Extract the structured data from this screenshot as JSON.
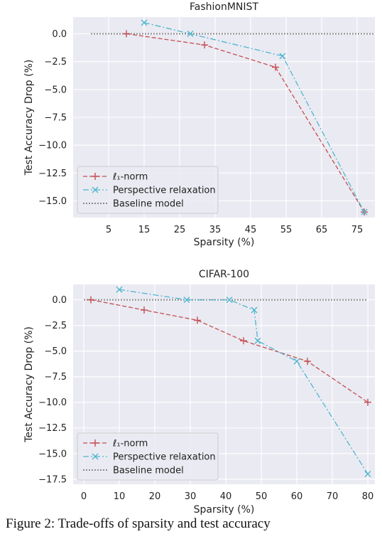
{
  "colors": {
    "background": "#eaeaf2",
    "grid": "#ffffff",
    "l1": "#c44e52",
    "perspective": "#4fb6cf",
    "baseline": "#8c8c8c"
  },
  "chart_data": [
    {
      "type": "line",
      "title": "FashionMNIST",
      "xlabel": "Sparsity (%)",
      "ylabel": "Test Accuracy Drop (%)",
      "xlim": [
        -5,
        80
      ],
      "ylim": [
        -16.5,
        1.5
      ],
      "xticks": [
        5,
        15,
        25,
        35,
        45,
        55,
        65,
        75
      ],
      "yticks": [
        0.0,
        -2.5,
        -5.0,
        -7.5,
        -10.0,
        -12.5,
        -15.0
      ],
      "ytick_labels": [
        "0.0",
        "−2.5",
        "−5.0",
        "−7.5",
        "−10.0",
        "−12.5",
        "−15.0"
      ],
      "grid": true,
      "legend_position": "lower-left",
      "series": [
        {
          "name": "ℓ₁-norm",
          "color_key": "l1",
          "marker": "plus",
          "style": "dashed",
          "x": [
            10,
            32,
            52,
            77
          ],
          "y": [
            0.0,
            -1.0,
            -3.0,
            -16.0
          ]
        },
        {
          "name": "Perspective relaxation",
          "color_key": "perspective",
          "marker": "x",
          "style": "dashdot",
          "x": [
            15,
            28,
            54,
            77
          ],
          "y": [
            1.0,
            0.0,
            -2.0,
            -16.0
          ]
        },
        {
          "name": "Baseline model",
          "color_key": "baseline",
          "marker": "none",
          "style": "dotted",
          "x": [
            0,
            80
          ],
          "y": [
            0.0,
            0.0
          ]
        }
      ]
    },
    {
      "type": "line",
      "title": "CIFAR-100",
      "xlabel": "Sparsity (%)",
      "ylabel": "Test Accuracy Drop (%)",
      "xlim": [
        -3,
        82
      ],
      "ylim": [
        -18.0,
        1.5
      ],
      "xticks": [
        0,
        10,
        20,
        30,
        40,
        50,
        60,
        70,
        80
      ],
      "yticks": [
        0.0,
        -2.5,
        -5.0,
        -7.5,
        -10.0,
        -12.5,
        -15.0,
        -17.5
      ],
      "ytick_labels": [
        "0.0",
        "−2.5",
        "−5.0",
        "−7.5",
        "−10.0",
        "−12.5",
        "−15.0",
        "−17.5"
      ],
      "grid": true,
      "legend_position": "lower-left",
      "series": [
        {
          "name": "ℓ₁-norm",
          "color_key": "l1",
          "marker": "plus",
          "style": "dashed",
          "x": [
            2,
            17,
            32,
            45,
            63,
            80
          ],
          "y": [
            0.0,
            -1.0,
            -2.0,
            -4.0,
            -6.0,
            -10.0
          ]
        },
        {
          "name": "Perspective relaxation",
          "color_key": "perspective",
          "marker": "x",
          "style": "dashdot",
          "x": [
            10,
            29,
            41,
            48,
            49,
            60,
            80
          ],
          "y": [
            1.0,
            0.0,
            0.0,
            -1.0,
            -4.0,
            -6.0,
            -17.0
          ]
        },
        {
          "name": "Baseline model",
          "color_key": "baseline",
          "marker": "none",
          "style": "dotted",
          "x": [
            0,
            80
          ],
          "y": [
            0.0,
            0.0
          ]
        }
      ]
    }
  ],
  "caption": "Figure 2: Trade-offs  of  sparsity  and  test  accuracy"
}
